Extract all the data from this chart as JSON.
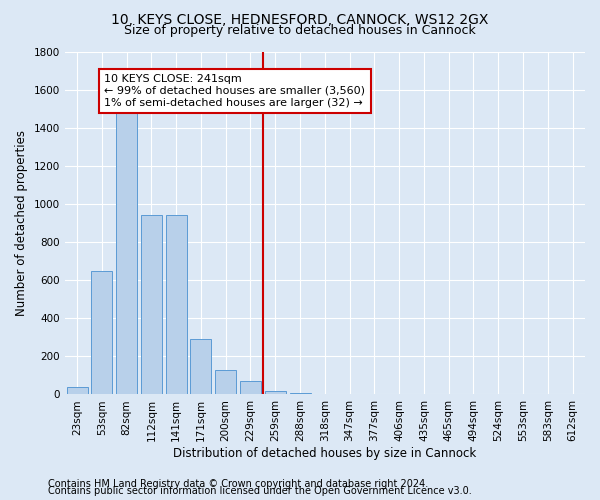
{
  "title1": "10, KEYS CLOSE, HEDNESFORD, CANNOCK, WS12 2GX",
  "title2": "Size of property relative to detached houses in Cannock",
  "xlabel": "Distribution of detached houses by size in Cannock",
  "ylabel": "Number of detached properties",
  "footer1": "Contains HM Land Registry data © Crown copyright and database right 2024.",
  "footer2": "Contains public sector information licensed under the Open Government Licence v3.0.",
  "annotation_title": "10 KEYS CLOSE: 241sqm",
  "annotation_line1": "← 99% of detached houses are smaller (3,560)",
  "annotation_line2": "1% of semi-detached houses are larger (32) →",
  "bar_labels": [
    "23sqm",
    "53sqm",
    "82sqm",
    "112sqm",
    "141sqm",
    "171sqm",
    "200sqm",
    "229sqm",
    "259sqm",
    "288sqm",
    "318sqm",
    "347sqm",
    "377sqm",
    "406sqm",
    "435sqm",
    "465sqm",
    "494sqm",
    "524sqm",
    "553sqm",
    "583sqm",
    "612sqm"
  ],
  "bar_heights": [
    40,
    650,
    1480,
    940,
    940,
    290,
    130,
    70,
    20,
    10,
    5,
    3,
    2,
    1,
    0,
    0,
    0,
    0,
    0,
    0,
    0
  ],
  "bar_color": "#b8d0ea",
  "bar_edge_color": "#5b9bd5",
  "vline_index": 8,
  "vline_color": "#cc0000",
  "box_edge_color": "#cc0000",
  "box_face_color": "#ffffff",
  "background_color": "#dce8f5",
  "ylim": [
    0,
    1800
  ],
  "yticks": [
    0,
    200,
    400,
    600,
    800,
    1000,
    1200,
    1400,
    1600,
    1800
  ],
  "grid_color": "#ffffff",
  "title_fontsize": 10,
  "subtitle_fontsize": 9,
  "axis_label_fontsize": 8.5,
  "tick_fontsize": 7.5,
  "annotation_fontsize": 8,
  "footer_fontsize": 7
}
